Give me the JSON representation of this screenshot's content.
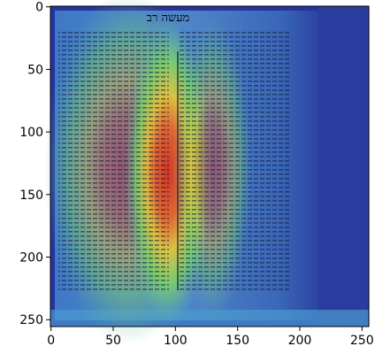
{
  "chart_data": {
    "type": "image",
    "image_text": "מעשה רב",
    "xlim": [
      -0.5,
      255.5
    ],
    "ylim": [
      255.5,
      -0.5
    ],
    "xticks": [
      0,
      50,
      100,
      150,
      200,
      250
    ],
    "yticks": [
      0,
      50,
      100,
      150,
      200,
      250
    ]
  }
}
